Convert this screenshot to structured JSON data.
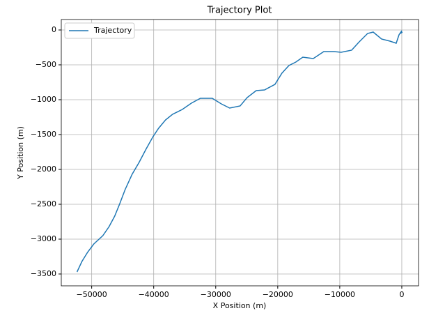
{
  "chart_data": {
    "type": "line",
    "title": "Trajectory Plot",
    "x_label": "X Position (m)",
    "y_label": "Y Position (m)",
    "x": [
      -52360,
      -51570,
      -50670,
      -49660,
      -48200,
      -47190,
      -46290,
      -45510,
      -44610,
      -43480,
      -42360,
      -41240,
      -40110,
      -39210,
      -38090,
      -36970,
      -35390,
      -33930,
      -32470,
      -30560,
      -29100,
      -27750,
      -26070,
      -24940,
      -23480,
      -22130,
      -20450,
      -19330,
      -18200,
      -17080,
      -15960,
      -14270,
      -12580,
      -10900,
      -9780,
      -8090,
      -6970,
      -5510,
      -4610,
      -3260,
      -1910,
      -900,
      -450,
      0,
      -220,
      100
    ],
    "series": [
      {
        "name": "Trajectory",
        "color": "#1f77b4",
        "values": [
          -3470,
          -3320,
          -3190,
          -3070,
          -2950,
          -2820,
          -2670,
          -2500,
          -2290,
          -2070,
          -1900,
          -1710,
          -1530,
          -1410,
          -1290,
          -1210,
          -1140,
          -1050,
          -980,
          -980,
          -1060,
          -1120,
          -1090,
          -970,
          -870,
          -860,
          -780,
          -620,
          -510,
          -460,
          -390,
          -410,
          -310,
          -310,
          -320,
          -290,
          -180,
          -50,
          -30,
          -130,
          -160,
          -190,
          -70,
          -10,
          -50,
          -30
        ]
      }
    ],
    "xlim": [
      -54900,
      2700
    ],
    "ylim": [
      -3670,
      150
    ],
    "xticks": [
      {
        "value": -50000,
        "label": "−50000"
      },
      {
        "value": -40000,
        "label": "−40000"
      },
      {
        "value": -30000,
        "label": "−30000"
      },
      {
        "value": -20000,
        "label": "−20000"
      },
      {
        "value": -10000,
        "label": "−10000"
      },
      0
    ],
    "yticks": [
      {
        "value": -3500,
        "label": "−3500"
      },
      {
        "value": -3000,
        "label": "−3000"
      },
      {
        "value": -2500,
        "label": "−2500"
      },
      {
        "value": -2000,
        "label": "−2000"
      },
      {
        "value": -1500,
        "label": "−1500"
      },
      {
        "value": -1000,
        "label": "−1000"
      },
      {
        "value": -500,
        "label": "−500"
      },
      0
    ],
    "grid": true,
    "legend": "upper-left"
  }
}
